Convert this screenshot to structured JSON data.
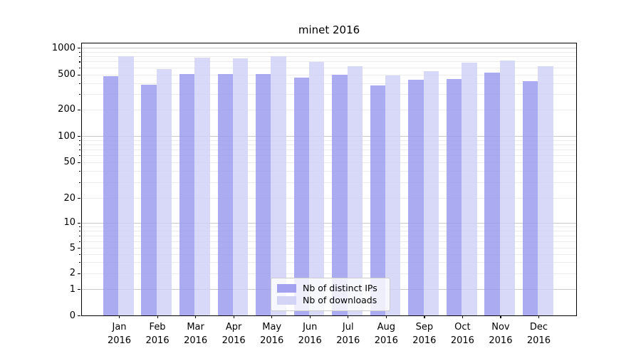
{
  "chart_data": {
    "type": "bar",
    "title": "minet 2016",
    "xlabel": "",
    "ylabel": "",
    "yscale": "symlog",
    "grid": true,
    "legend_position": "lower center",
    "ylim": [
      0,
      1200
    ],
    "categories": [
      "Jan",
      "Feb",
      "Mar",
      "Apr",
      "May",
      "Jun",
      "Jul",
      "Aug",
      "Sep",
      "Oct",
      "Nov",
      "Dec"
    ],
    "category_year": "2016",
    "series": [
      {
        "name": "Nb of distinct IPs",
        "color": "#9898ee",
        "values": [
          490,
          390,
          520,
          520,
          520,
          470,
          505,
          385,
          450,
          460,
          535,
          435
        ]
      },
      {
        "name": "Nb of downloads",
        "color": "#cfcff6",
        "values": [
          825,
          590,
          795,
          785,
          830,
          715,
          635,
          500,
          560,
          700,
          740,
          640
        ]
      }
    ],
    "y_tick_labels": [
      "1000",
      "500",
      "200",
      "100",
      "50",
      "20",
      "10",
      "5",
      "2",
      "1",
      "0"
    ],
    "y_tick_values": [
      1000,
      500,
      200,
      100,
      50,
      20,
      10,
      5,
      2,
      1,
      0
    ],
    "y_major_grid_values": [
      1,
      10,
      100,
      1000
    ],
    "y_minor_grid_values": [
      2,
      3,
      4,
      5,
      6,
      7,
      8,
      9,
      20,
      30,
      40,
      50,
      60,
      70,
      80,
      90,
      200,
      300,
      400,
      500,
      600,
      700,
      800,
      900
    ]
  }
}
